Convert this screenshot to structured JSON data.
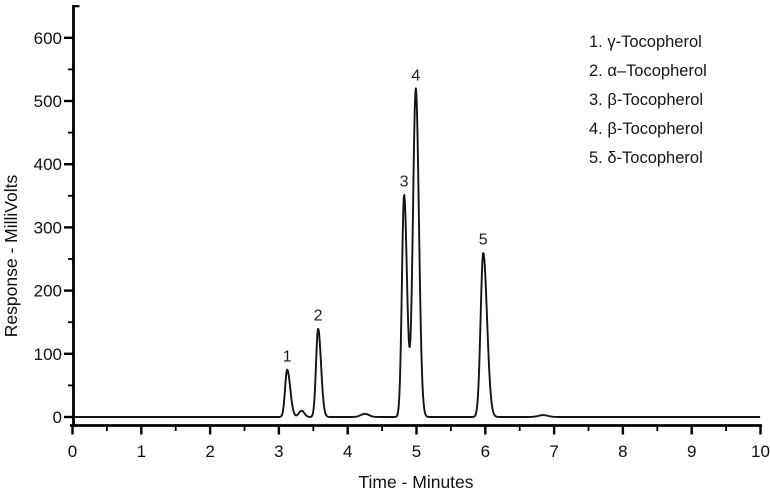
{
  "figure": {
    "kind": "HPLC chromatogram",
    "background_color": "#ffffff",
    "axis_color": "#000000",
    "text_color": "#111111"
  },
  "chart_data": {
    "type": "line",
    "title": "",
    "xlabel": "Time - Minutes",
    "ylabel": "Response - MilliVolts",
    "xlim": [
      0,
      10
    ],
    "ylim": [
      -15,
      650
    ],
    "x_major_ticks": [
      0,
      1,
      2,
      3,
      4,
      5,
      6,
      7,
      8,
      9,
      10
    ],
    "x_minor_tick_step": 0.5,
    "y_major_ticks": [
      0,
      100,
      200,
      300,
      400,
      500,
      600
    ],
    "y_minor_tick_step": 50,
    "grid": false,
    "line_color": "#141414",
    "legend_position": "top-right",
    "legend": [
      "1. γ-Tocopherol",
      "2. α–Tocopherol",
      "3. β-Tocopherol",
      "4. β-Tocopherol",
      "5. δ-Tocopherol"
    ],
    "peaks": [
      {
        "label": "1",
        "time_min": 3.12,
        "height_mv": 75,
        "width_left": 0.03,
        "width_right": 0.045
      },
      {
        "label": "2",
        "time_min": 3.57,
        "height_mv": 140,
        "width_left": 0.03,
        "width_right": 0.042
      },
      {
        "label": "3",
        "time_min": 4.82,
        "height_mv": 352,
        "width_left": 0.032,
        "width_right": 0.042
      },
      {
        "label": "4",
        "time_min": 4.99,
        "height_mv": 520,
        "width_left": 0.042,
        "width_right": 0.045
      },
      {
        "label": "5",
        "time_min": 5.97,
        "height_mv": 260,
        "width_left": 0.038,
        "width_right": 0.055
      }
    ],
    "baseline_features": [
      {
        "time_min": 3.33,
        "height_mv": 10,
        "width": 0.04
      },
      {
        "time_min": 4.25,
        "height_mv": 5,
        "width": 0.06
      },
      {
        "time_min": 6.84,
        "height_mv": 3,
        "width": 0.07
      }
    ]
  }
}
